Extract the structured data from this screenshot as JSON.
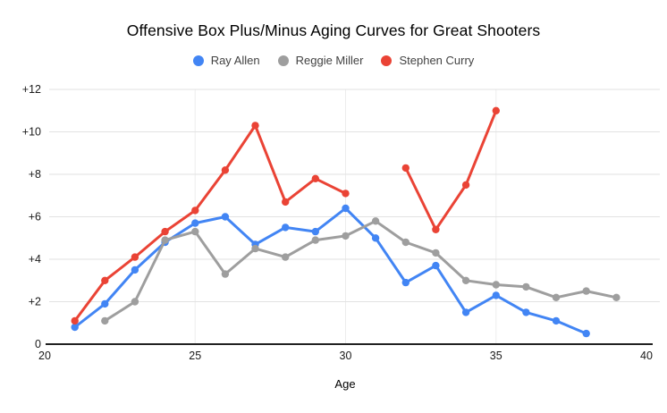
{
  "chart_data": {
    "type": "line",
    "title": "Offensive Box Plus/Minus Aging Curves for Great Shooters",
    "xlabel": "Age",
    "ylabel": "",
    "xlim": [
      20,
      40
    ],
    "ylim": [
      0,
      12
    ],
    "x_ticks": [
      20,
      25,
      30,
      35,
      40
    ],
    "y_ticks": [
      0,
      2,
      4,
      6,
      8,
      10,
      12
    ],
    "y_tick_labels": [
      "0",
      "+2",
      "+4",
      "+6",
      "+8",
      "+10",
      "+12"
    ],
    "grid": "horizontal-major",
    "vertical_gridline_ages": [
      25,
      30,
      35
    ],
    "legend_position": "top",
    "colors": {
      "gridline": "#e2e2e2",
      "vertical_gridline": "#ededed",
      "axis_line": "#212121",
      "title_text": "#000000",
      "legend_text": "#424242"
    },
    "series": [
      {
        "name": "Ray Allen",
        "color": "#4285F4",
        "x": [
          21,
          22,
          23,
          24,
          25,
          26,
          27,
          28,
          29,
          30,
          31,
          32,
          33,
          34,
          35,
          36,
          37,
          38
        ],
        "values": [
          0.8,
          1.9,
          3.5,
          4.8,
          5.7,
          6.0,
          4.7,
          5.5,
          5.3,
          6.4,
          5.0,
          2.9,
          3.7,
          1.5,
          2.3,
          1.5,
          1.1,
          0.5
        ]
      },
      {
        "name": "Reggie Miller",
        "color": "#9E9E9E",
        "x": [
          22,
          23,
          24,
          25,
          26,
          27,
          28,
          29,
          30,
          31,
          32,
          33,
          34,
          35,
          36,
          37,
          38,
          39
        ],
        "values": [
          1.1,
          2.0,
          4.9,
          5.3,
          3.3,
          4.5,
          4.1,
          4.9,
          5.1,
          5.8,
          4.8,
          4.3,
          3.0,
          2.8,
          2.7,
          2.2,
          2.5,
          2.2
        ]
      },
      {
        "name": "Stephen Curry",
        "color": "#EA4335",
        "x": [
          21,
          22,
          23,
          24,
          25,
          26,
          27,
          28,
          29,
          30,
          31,
          32,
          33,
          34,
          35
        ],
        "values": [
          1.1,
          3.0,
          4.1,
          5.3,
          6.3,
          8.2,
          10.3,
          6.7,
          7.8,
          7.1,
          null,
          8.3,
          5.4,
          7.5,
          11.0
        ]
      }
    ]
  }
}
